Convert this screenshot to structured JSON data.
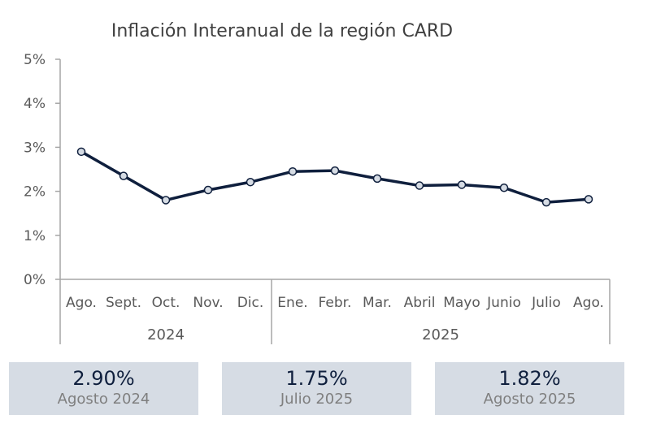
{
  "chart_data": {
    "type": "line",
    "title": "Inflación Interanual de la región CARD",
    "categories": [
      "Ago.",
      "Sept.",
      "Oct.",
      "Nov.",
      "Dic.",
      "Ene.",
      "Febr.",
      "Mar.",
      "Abril",
      "Mayo",
      "Junio",
      "Julio",
      "Ago."
    ],
    "groups": [
      {
        "label": "2024",
        "count": 5
      },
      {
        "label": "2025",
        "count": 8
      }
    ],
    "values": [
      2.9,
      2.35,
      1.8,
      2.03,
      2.21,
      2.45,
      2.47,
      2.29,
      2.13,
      2.15,
      2.08,
      1.75,
      1.82
    ],
    "ylim": [
      0,
      5
    ],
    "yticks": [
      "0%",
      "1%",
      "2%",
      "3%",
      "4%",
      "5%"
    ],
    "grid": false,
    "line_color": "#0f1f3d",
    "marker_fill": "#d6dce4"
  },
  "cards": [
    {
      "value": "2.90%",
      "label": "Agosto 2024"
    },
    {
      "value": "1.75%",
      "label": "Julio 2025"
    },
    {
      "value": "1.82%",
      "label": "Agosto 2025"
    }
  ],
  "colors": {
    "card_bg": "#d6dce4",
    "value_text": "#0f1f3d",
    "label_text": "#7f7f7f"
  }
}
